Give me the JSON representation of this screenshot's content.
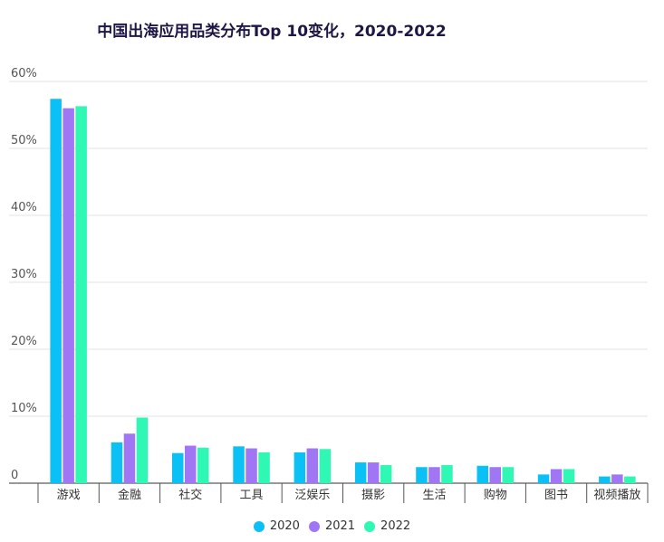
{
  "chart_data": {
    "type": "bar",
    "title": "中国出海应用品类分布Top 10变化，2020-2022",
    "categories": [
      "游戏",
      "金融",
      "社交",
      "工具",
      "泛娱乐",
      "摄影",
      "生活",
      "购物",
      "图书",
      "视频播放"
    ],
    "series": [
      {
        "name": "2020",
        "color": "#0bc0f5",
        "values": [
          57.4,
          6.1,
          4.5,
          5.5,
          4.6,
          3.1,
          2.4,
          2.6,
          1.3,
          1.0
        ]
      },
      {
        "name": "2021",
        "color": "#a176f5",
        "values": [
          56.0,
          7.4,
          5.6,
          5.2,
          5.2,
          3.1,
          2.4,
          2.4,
          2.1,
          1.3
        ]
      },
      {
        "name": "2022",
        "color": "#2ff7b4",
        "values": [
          56.3,
          9.8,
          5.3,
          4.6,
          5.1,
          2.7,
          2.7,
          2.4,
          2.1,
          1.0
        ]
      }
    ],
    "ylim": [
      0,
      60
    ],
    "yticks": [
      "0",
      "10%",
      "20%",
      "30%",
      "40%",
      "50%",
      "60%"
    ],
    "grid": true,
    "legend_position": "bottom"
  }
}
